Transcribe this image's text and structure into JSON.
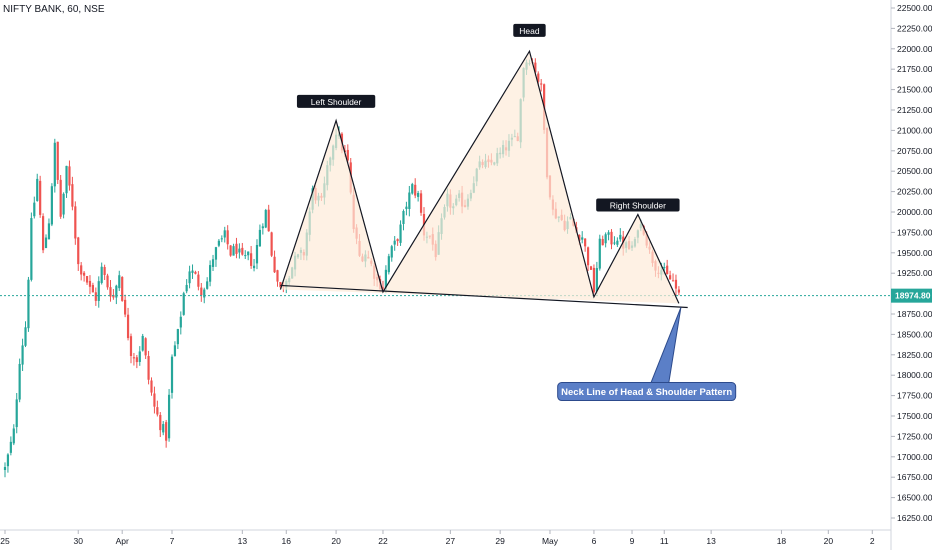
{
  "header": {
    "symbol_line": "NIFTY BANK, 60, NSE"
  },
  "chart_data": {
    "type": "candlestick",
    "title": "NIFTY BANK, 60, NSE",
    "ylim": [
      16150,
      22600
    ],
    "y_ticks": [
      22500,
      22250,
      22000,
      21750,
      21500,
      21250,
      21000,
      20750,
      20500,
      20250,
      20000,
      19750,
      19500,
      19250,
      19000,
      18750,
      18500,
      18250,
      18000,
      17750,
      17500,
      17250,
      17000,
      16750,
      16500,
      16250
    ],
    "y_tick_labels": [
      "22500.00",
      "22250.00",
      "22000.00",
      "21750.00",
      "21500.00",
      "21250.00",
      "21000.00",
      "20750.00",
      "20500.00",
      "20250.00",
      "20000.00",
      "19750.00",
      "19500.00",
      "19250.00",
      "19000.00",
      "18750.00",
      "18500.00",
      "18250.00",
      "18000.00",
      "17750.00",
      "17500.00",
      "17250.00",
      "17000.00",
      "16750.00",
      "16500.00",
      "16250.00"
    ],
    "x_ticks": [
      {
        "label": "25",
        "idx": 0
      },
      {
        "label": "30",
        "idx": 25
      },
      {
        "label": "Apr",
        "idx": 40
      },
      {
        "label": "7",
        "idx": 57
      },
      {
        "label": "13",
        "idx": 81
      },
      {
        "label": "16",
        "idx": 96
      },
      {
        "label": "20",
        "idx": 113
      },
      {
        "label": "22",
        "idx": 129
      },
      {
        "label": "27",
        "idx": 152
      },
      {
        "label": "29",
        "idx": 169
      },
      {
        "label": "May",
        "idx": 186
      },
      {
        "label": "6",
        "idx": 201
      },
      {
        "label": "9",
        "idx": 214
      },
      {
        "label": "11",
        "idx": 225
      },
      {
        "label": "13",
        "idx": 241
      },
      {
        "label": "18",
        "idx": 265
      },
      {
        "label": "20",
        "idx": 281
      },
      {
        "label": "2",
        "idx": 296
      }
    ],
    "current_price": 18974.8,
    "current_price_label": "18974.80",
    "pattern_points": [
      {
        "idx": 94,
        "price": 19050
      },
      {
        "idx": 113,
        "price": 21120
      },
      {
        "idx": 129,
        "price": 19020
      },
      {
        "idx": 179,
        "price": 21970
      },
      {
        "idx": 201,
        "price": 18960
      },
      {
        "idx": 216,
        "price": 19970
      },
      {
        "idx": 230,
        "price": 18880
      }
    ],
    "neckline": [
      {
        "idx": 94,
        "price": 19100
      },
      {
        "idx": 233,
        "price": 18830
      }
    ],
    "annotations": [
      {
        "text": "Left Shoulder",
        "idx": 113,
        "price": 21350
      },
      {
        "text": "Head",
        "idx": 179,
        "price": 22220
      },
      {
        "text": "Right Shoulder",
        "idx": 216,
        "price": 20080
      }
    ],
    "callout": {
      "text": "Neck Line of Head & Shoulder Pattern",
      "idx": 219,
      "price": 17800,
      "anchor_idx": 230,
      "anchor_price": 18880
    },
    "path": [
      [
        0,
        16850
      ],
      [
        3,
        17300
      ],
      [
        5,
        18200
      ],
      [
        7,
        18600
      ],
      [
        9,
        19850
      ],
      [
        11,
        20400
      ],
      [
        13,
        19500
      ],
      [
        15,
        19900
      ],
      [
        17,
        20800
      ],
      [
        19,
        19950
      ],
      [
        21,
        20500
      ],
      [
        23,
        20100
      ],
      [
        25,
        19350
      ],
      [
        27,
        19250
      ],
      [
        29,
        19050
      ],
      [
        31,
        18950
      ],
      [
        33,
        19300
      ],
      [
        35,
        19100
      ],
      [
        37,
        18950
      ],
      [
        39,
        19250
      ],
      [
        41,
        18700
      ],
      [
        43,
        18300
      ],
      [
        45,
        18200
      ],
      [
        47,
        18450
      ],
      [
        49,
        17950
      ],
      [
        51,
        17600
      ],
      [
        53,
        17400
      ],
      [
        55,
        17250
      ],
      [
        57,
        18200
      ],
      [
        59,
        18500
      ],
      [
        61,
        19000
      ],
      [
        63,
        19300
      ],
      [
        65,
        19200
      ],
      [
        67,
        19050
      ],
      [
        69,
        19150
      ],
      [
        71,
        19450
      ],
      [
        73,
        19600
      ],
      [
        75,
        19700
      ],
      [
        77,
        19500
      ],
      [
        79,
        19550
      ],
      [
        81,
        19400
      ],
      [
        83,
        19450
      ],
      [
        85,
        19350
      ],
      [
        87,
        19800
      ],
      [
        89,
        20000
      ],
      [
        91,
        19500
      ],
      [
        93,
        19150
      ],
      [
        94,
        19050
      ],
      [
        96,
        19200
      ],
      [
        99,
        19400
      ],
      [
        102,
        19500
      ],
      [
        105,
        20250
      ],
      [
        108,
        20100
      ],
      [
        111,
        20700
      ],
      [
        113,
        21000
      ],
      [
        115,
        20800
      ],
      [
        117,
        20600
      ],
      [
        119,
        19800
      ],
      [
        121,
        19450
      ],
      [
        123,
        19500
      ],
      [
        125,
        19350
      ],
      [
        127,
        19150
      ],
      [
        129,
        19100
      ],
      [
        131,
        19450
      ],
      [
        133,
        19600
      ],
      [
        135,
        19800
      ],
      [
        137,
        20100
      ],
      [
        139,
        20300
      ],
      [
        141,
        20200
      ],
      [
        143,
        19750
      ],
      [
        145,
        19700
      ],
      [
        147,
        19500
      ],
      [
        149,
        19850
      ],
      [
        151,
        20150
      ],
      [
        153,
        20050
      ],
      [
        155,
        20150
      ],
      [
        157,
        20100
      ],
      [
        159,
        20300
      ],
      [
        161,
        20500
      ],
      [
        163,
        20600
      ],
      [
        165,
        20550
      ],
      [
        167,
        20650
      ],
      [
        169,
        20700
      ],
      [
        171,
        20800
      ],
      [
        173,
        20850
      ],
      [
        175,
        20950
      ],
      [
        177,
        21800
      ],
      [
        179,
        21900
      ],
      [
        181,
        21750
      ],
      [
        183,
        21500
      ],
      [
        185,
        20500
      ],
      [
        187,
        20000
      ],
      [
        189,
        19950
      ],
      [
        191,
        19850
      ],
      [
        193,
        19900
      ],
      [
        195,
        19750
      ],
      [
        197,
        19700
      ],
      [
        199,
        19400
      ],
      [
        201,
        19050
      ],
      [
        203,
        19600
      ],
      [
        205,
        19700
      ],
      [
        207,
        19650
      ],
      [
        209,
        19700
      ],
      [
        211,
        19600
      ],
      [
        213,
        19550
      ],
      [
        215,
        19600
      ],
      [
        216,
        19850
      ],
      [
        218,
        19800
      ],
      [
        220,
        19500
      ],
      [
        222,
        19350
      ],
      [
        224,
        19300
      ],
      [
        226,
        19200
      ],
      [
        228,
        19150
      ],
      [
        230,
        18950
      ]
    ],
    "colors": {
      "up": "#26a69a",
      "down": "#ef5350",
      "fill": "#fdebd9",
      "line": "#131722",
      "label_bg": "#131722",
      "callout_bg": "#5b7fc7",
      "callout_border": "#2c4a8c",
      "price_line": "#26a69a"
    }
  }
}
